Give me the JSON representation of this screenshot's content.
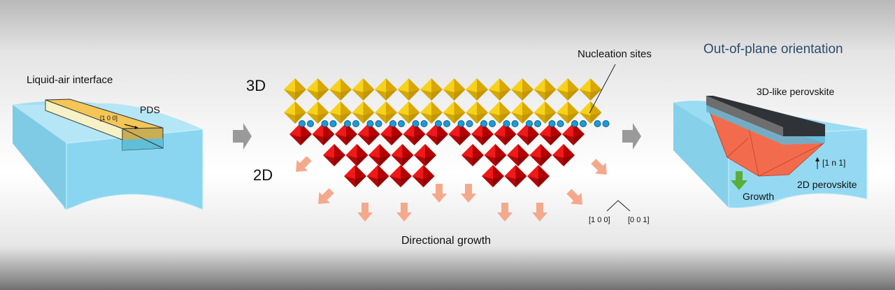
{
  "left_panel": {
    "title": "Liquid-air interface",
    "pds_label": "PDS",
    "direction_label": "[1 0 0]"
  },
  "middle_panel": {
    "label_3d": "3D",
    "label_2d": "2D",
    "nucleation_label": "Nucleation sites",
    "growth_caption": "Directional growth",
    "axis_left": "[1 0 0]",
    "axis_right": "[0 0 1]"
  },
  "right_panel": {
    "title": "Out-of-plane orientation",
    "top_label": "3D-like perovskite",
    "direction_label": "[1 n 1]",
    "bottom_label": "2D perovskite",
    "growth_label": "Growth"
  },
  "colors": {
    "water": "#8fd6ee",
    "pds": "#f3c552",
    "octahedron_3d": "#f2c200",
    "octahedron_2d": "#e01010",
    "nucleation": "#1e9ad6",
    "arrow": "#f5a98c",
    "title_blue": "#2c4c6e",
    "growth_arrow": "#5aae3a",
    "red_2d": "#f36b4d",
    "dark_layer": "#333"
  }
}
